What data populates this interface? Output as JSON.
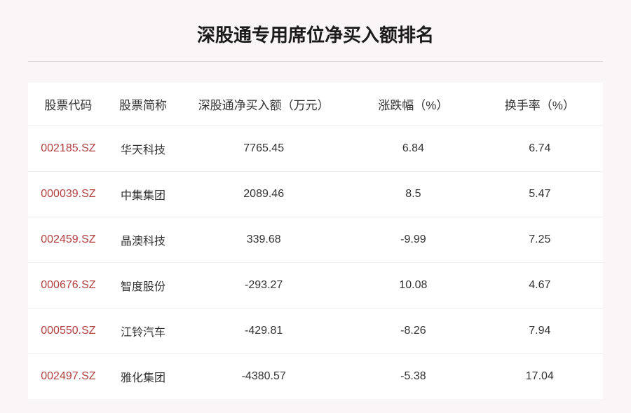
{
  "title": "深股通专用席位净买入额排名",
  "table": {
    "columns": [
      "股票代码",
      "股票简称",
      "深股通净买入额（万元）",
      "涨跌幅（%）",
      "换手率（%）"
    ],
    "rows": [
      {
        "code": "002185.SZ",
        "name": "华天科技",
        "netbuy": "7765.45",
        "change": "6.84",
        "turnover": "6.74"
      },
      {
        "code": "000039.SZ",
        "name": "中集集团",
        "netbuy": "2089.46",
        "change": "8.5",
        "turnover": "5.47"
      },
      {
        "code": "002459.SZ",
        "name": "晶澳科技",
        "netbuy": "339.68",
        "change": "-9.99",
        "turnover": "7.25"
      },
      {
        "code": "000676.SZ",
        "name": "智度股份",
        "netbuy": "-293.27",
        "change": "10.08",
        "turnover": "4.67"
      },
      {
        "code": "000550.SZ",
        "name": "江铃汽车",
        "netbuy": "-429.81",
        "change": "-8.26",
        "turnover": "7.94"
      },
      {
        "code": "002497.SZ",
        "name": "雅化集团",
        "netbuy": "-4380.57",
        "change": "-5.38",
        "turnover": "17.04"
      }
    ]
  },
  "styling": {
    "background_color": "#faf5f6",
    "table_background": "#ffffff",
    "title_color": "#1a1a1a",
    "title_fontsize": 26,
    "header_fontsize": 17,
    "cell_fontsize": 16,
    "text_color": "#333333",
    "code_color": "#b04040",
    "divider_color": "#d8d4d5",
    "row_border_color": "#eeeeee",
    "column_widths_pct": [
      14,
      12,
      30,
      22,
      22
    ]
  }
}
